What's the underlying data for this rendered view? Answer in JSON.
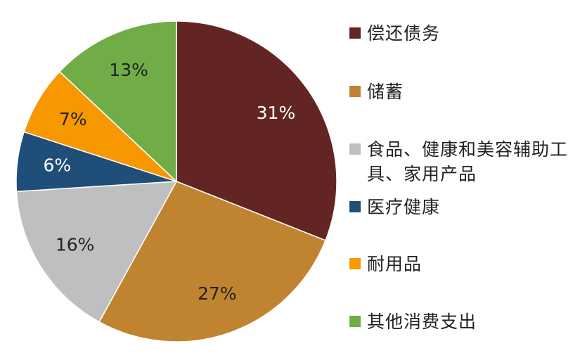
{
  "chart_data": {
    "type": "pie",
    "categories": [
      "偿还债务",
      "储蓄",
      "食品、健康和美容辅助工具、家用产品",
      "医疗健康",
      "耐用品",
      "其他消费支出"
    ],
    "values": [
      31,
      27,
      16,
      6,
      7,
      13
    ],
    "value_labels": [
      "31%",
      "27%",
      "16%",
      "6%",
      "7%",
      "13%"
    ],
    "colors": [
      "#632523",
      "#C0832F",
      "#BFBFBF",
      "#1F4E79",
      "#F79800",
      "#70AD47"
    ],
    "legend": "right"
  }
}
